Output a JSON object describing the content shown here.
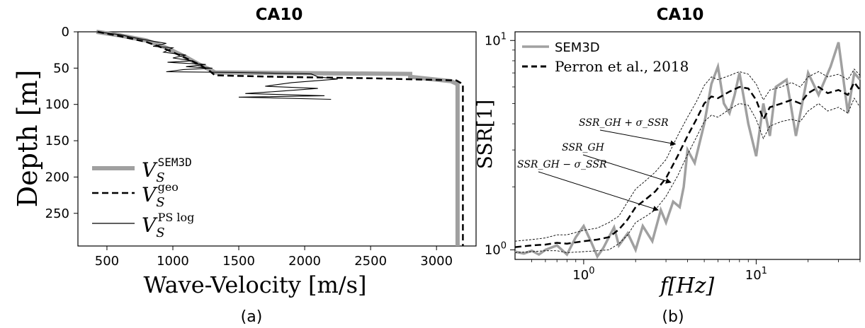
{
  "chart_data": [
    {
      "type": "line",
      "title": "CA10",
      "caption": "(a)",
      "xlabel": "Wave-Velocity [m/s]",
      "ylabel": "Depth [m]",
      "xlim": [
        280,
        3300
      ],
      "ylim": [
        295,
        0
      ],
      "y_inverted": true,
      "xticks": [
        500,
        1000,
        1500,
        2000,
        2500,
        3000
      ],
      "yticks": [
        0,
        50,
        100,
        150,
        200,
        250
      ],
      "grid": false,
      "legend_position": "lower-left",
      "series": [
        {
          "name_main": "V",
          "name_sub": "S",
          "name_sup": "SEM3D",
          "style": "thick-gray",
          "x": [
            420,
            600,
            800,
            950,
            1100,
            1200,
            1280,
            1320,
            2800,
            2800,
            3110,
            3160,
            3160
          ],
          "y": [
            0,
            5,
            12,
            22,
            35,
            45,
            52,
            56,
            58,
            62,
            68,
            72,
            295
          ]
        },
        {
          "name_main": "V",
          "name_sub": "S",
          "name_sup": "geo",
          "style": "dashed-black",
          "x": [
            430,
            600,
            800,
            920,
            1050,
            1200,
            1280,
            1320,
            1800,
            2500,
            3150,
            3200,
            3200
          ],
          "y": [
            0,
            6,
            14,
            22,
            32,
            45,
            54,
            60,
            62,
            64,
            67,
            72,
            295
          ]
        },
        {
          "name_main": "V",
          "name_sub": "S",
          "name_sup": "PS log",
          "style": "thin-black",
          "x": [
            420,
            600,
            700,
            820,
            950,
            850,
            1000,
            930,
            1100,
            1000,
            1150,
            960,
            1250,
            1100,
            1300,
            1080,
            950,
            1500,
            2050,
            2100,
            2250,
            1900,
            1700,
            2100,
            1800,
            1550,
            2150,
            1500,
            2200
          ],
          "y": [
            0,
            4,
            8,
            12,
            16,
            20,
            22,
            28,
            32,
            36,
            40,
            42,
            45,
            48,
            50,
            52,
            55,
            56,
            58,
            62,
            65,
            70,
            75,
            78,
            82,
            85,
            88,
            90,
            93
          ]
        }
      ]
    },
    {
      "type": "line",
      "title": "CA10",
      "caption": "(b)",
      "xlabel": "f[Hz]",
      "ylabel": "SSR[1]",
      "x_scale": "log",
      "y_scale": "log",
      "xlim": [
        0.4,
        40
      ],
      "ylim": [
        0.9,
        11
      ],
      "xticks": [
        1,
        10
      ],
      "xtick_labels": [
        "10^0",
        "10^1"
      ],
      "yticks": [
        1,
        10
      ],
      "ytick_labels": [
        "10^0",
        "10^1"
      ],
      "grid": false,
      "legend_position": "top-left",
      "annotations": [
        {
          "text": "SSR_GH + σ_SSR",
          "x": 3.4,
          "y": 3.2
        },
        {
          "text": "SSR_GH",
          "x": 3.2,
          "y": 2.1
        },
        {
          "text": "SSR_GH − σ_SSR",
          "x": 2.7,
          "y": 1.55
        }
      ],
      "series": [
        {
          "name": "SEM3D",
          "style": "thick-gray",
          "x": [
            0.4,
            0.45,
            0.5,
            0.55,
            0.6,
            0.7,
            0.8,
            0.9,
            1.0,
            1.1,
            1.2,
            1.3,
            1.4,
            1.5,
            1.6,
            1.8,
            2.0,
            2.2,
            2.5,
            2.8,
            3.0,
            3.3,
            3.6,
            3.8,
            4.0,
            4.4,
            5.0,
            5.5,
            6.0,
            6.5,
            7.0,
            7.5,
            8.0,
            9.0,
            10.0,
            11.0,
            12.0,
            13.0,
            15.0,
            17.0,
            20.0,
            23.0,
            27.0,
            30.0,
            34.0,
            37.0,
            40.0
          ],
          "y": [
            0.98,
            0.96,
            0.99,
            0.95,
            1.0,
            1.05,
            0.95,
            1.15,
            1.3,
            1.1,
            0.93,
            1.02,
            1.15,
            1.28,
            1.05,
            1.2,
            1.0,
            1.3,
            1.1,
            1.55,
            1.35,
            1.7,
            1.6,
            2.0,
            3.0,
            2.6,
            4.0,
            6.2,
            7.5,
            5.0,
            4.5,
            5.5,
            7.0,
            4.0,
            2.8,
            5.0,
            3.5,
            6.0,
            6.5,
            3.5,
            7.0,
            5.5,
            7.5,
            9.8,
            4.5,
            7.0,
            6.5
          ]
        },
        {
          "name": "Perron et al., 2018",
          "style": "dashed-black",
          "x": [
            0.4,
            0.5,
            0.6,
            0.7,
            0.8,
            1.0,
            1.2,
            1.4,
            1.6,
            1.8,
            2.0,
            2.3,
            2.6,
            3.0,
            3.5,
            4.0,
            4.5,
            5.0,
            5.5,
            6.0,
            7.0,
            8.0,
            9.0,
            10.0,
            11.0,
            12.0,
            14.0,
            16.0,
            18.0,
            20.0,
            23.0,
            26.0,
            30.0,
            34.0,
            37.0,
            40.0
          ],
          "y": [
            1.03,
            1.05,
            1.06,
            1.08,
            1.07,
            1.1,
            1.12,
            1.15,
            1.25,
            1.4,
            1.6,
            1.75,
            1.9,
            2.2,
            2.8,
            3.5,
            4.2,
            5.0,
            5.4,
            5.3,
            5.7,
            6.0,
            5.9,
            5.2,
            4.2,
            4.8,
            5.0,
            5.2,
            5.0,
            5.6,
            6.0,
            5.6,
            5.8,
            5.5,
            6.3,
            5.8
          ]
        },
        {
          "name": "",
          "style": "thin-dashed",
          "x": [
            0.4,
            0.5,
            0.6,
            0.7,
            0.8,
            1.0,
            1.2,
            1.4,
            1.6,
            1.8,
            2.0,
            2.3,
            2.6,
            3.0,
            3.5,
            4.0,
            4.5,
            5.0,
            5.5,
            6.0,
            7.0,
            8.0,
            9.0,
            10.0,
            11.0,
            12.0,
            14.0,
            16.0,
            18.0,
            20.0,
            23.0,
            26.0,
            30.0,
            34.0,
            37.0,
            40.0
          ],
          "y": [
            1.1,
            1.12,
            1.14,
            1.18,
            1.18,
            1.24,
            1.27,
            1.35,
            1.45,
            1.7,
            1.95,
            2.15,
            2.35,
            2.7,
            3.5,
            4.3,
            5.1,
            6.1,
            6.7,
            6.5,
            6.8,
            7.1,
            6.9,
            6.2,
            5.2,
            5.8,
            6.0,
            6.3,
            6.0,
            6.7,
            7.1,
            6.7,
            6.9,
            6.5,
            7.3,
            6.8
          ]
        },
        {
          "name": "",
          "style": "thin-dashed",
          "x": [
            0.4,
            0.5,
            0.6,
            0.7,
            0.8,
            1.0,
            1.2,
            1.4,
            1.6,
            1.8,
            2.0,
            2.3,
            2.6,
            3.0,
            3.5,
            4.0,
            4.5,
            5.0,
            5.5,
            6.0,
            7.0,
            8.0,
            9.0,
            10.0,
            11.0,
            12.0,
            14.0,
            16.0,
            18.0,
            20.0,
            23.0,
            26.0,
            30.0,
            34.0,
            37.0,
            40.0
          ],
          "y": [
            0.97,
            0.98,
            0.99,
            0.99,
            0.97,
            0.98,
            0.99,
            1.0,
            1.07,
            1.18,
            1.35,
            1.45,
            1.55,
            1.8,
            2.25,
            2.85,
            3.45,
            4.1,
            4.4,
            4.3,
            4.7,
            5.0,
            4.9,
            4.2,
            3.4,
            3.9,
            4.1,
            4.2,
            4.1,
            4.6,
            5.0,
            4.6,
            4.8,
            4.5,
            5.3,
            4.8
          ]
        }
      ]
    }
  ]
}
